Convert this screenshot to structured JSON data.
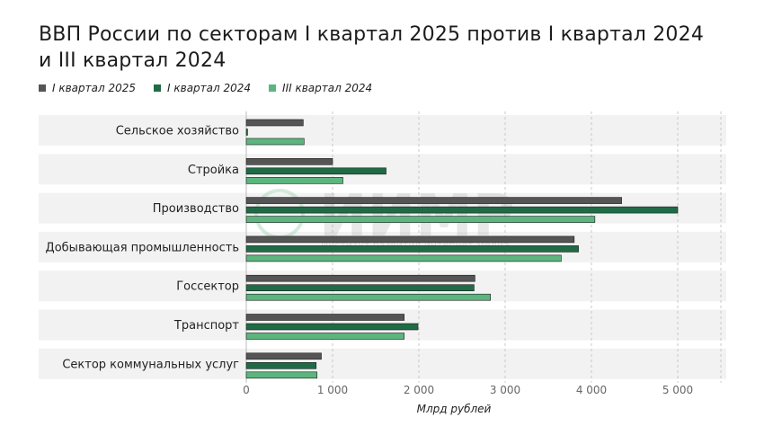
{
  "title": "ВВП России по секторам I квартал 2025 против I квартал 2024 и III квартал 2024",
  "watermark": {
    "brand": "ИИМР",
    "tagline": "Институт развития интернет-медиа"
  },
  "chart_data": {
    "type": "bar",
    "orientation": "horizontal",
    "categories": [
      "Сельское хозяйство",
      "Стройка",
      "Производство",
      "Добывающая промышленность",
      "Госсектор",
      "Транспорт",
      "Сектор коммунальных услуг"
    ],
    "series": [
      {
        "name": "I квартал 2025",
        "color": "#555555",
        "values": [
          660,
          1000,
          4350,
          3800,
          2650,
          1830,
          870
        ]
      },
      {
        "name": "I квартал 2024",
        "color": "#1f6b45",
        "values": [
          15,
          1620,
          5000,
          3850,
          2640,
          1990,
          810
        ]
      },
      {
        "name": "III квартал 2024",
        "color": "#5cb57e",
        "values": [
          670,
          1120,
          4040,
          3650,
          2830,
          1830,
          820
        ]
      }
    ],
    "xlabel": "Млрд рублей",
    "xlim": [
      0,
      5500
    ],
    "xticks": [
      0,
      1000,
      2000,
      3000,
      4000,
      5000
    ],
    "xtick_labels": [
      "0",
      "1 000",
      "2 000",
      "3 000",
      "4 000",
      "5 000"
    ],
    "grid": true,
    "legend_position": "top-left"
  }
}
